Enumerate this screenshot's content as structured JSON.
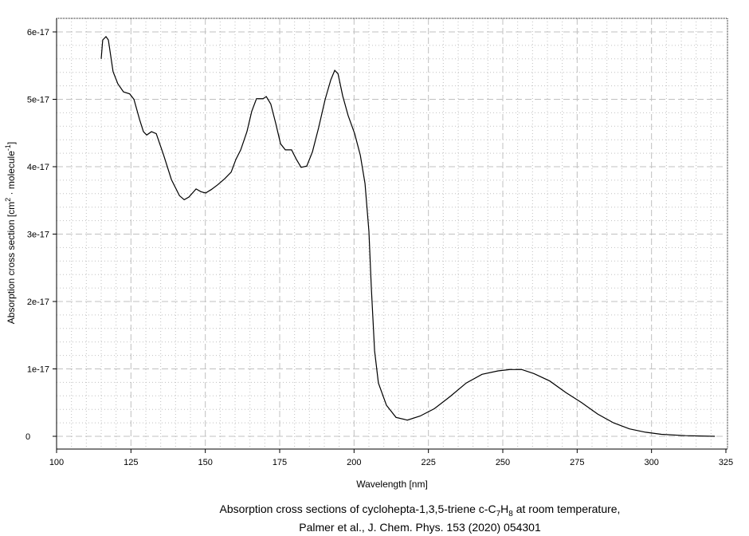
{
  "chart_data": {
    "type": "line",
    "title": "",
    "xlabel": "Wavelength [nm]",
    "ylabel": {
      "main": "Absorption cross section [cm",
      "sup1": "2",
      "mid": " · molecule",
      "sup2": "-1",
      "end": "]"
    },
    "xlim": [
      100,
      325
    ],
    "ylim": [
      -1.9e-18,
      6.2e-17
    ],
    "xticks": [
      100,
      125,
      150,
      175,
      200,
      225,
      250,
      275,
      300,
      325
    ],
    "xtick_labels": [
      "100",
      "125",
      "150",
      "175",
      "200",
      "225",
      "250",
      "275",
      "300",
      "325"
    ],
    "yticks": [
      0,
      1e-17,
      2e-17,
      3e-17,
      4e-17,
      5e-17,
      6e-17
    ],
    "ytick_labels": [
      "0",
      "1e-17",
      "2e-17",
      "3e-17",
      "4e-17",
      "5e-17",
      "6e-17"
    ],
    "grid": {
      "major": "dashed",
      "minor": "dotted",
      "x_minor_step": 5,
      "y_minor_step": 2e-18
    },
    "line_color": "#000000",
    "grid_color": "#c0c0c0",
    "series": [
      {
        "x": [
          115,
          115.5,
          116.6,
          117.4,
          119,
          120.6,
          122.5,
          124.6,
          126,
          127.9,
          129.2,
          130.3,
          131.9,
          133.5,
          136,
          138.6,
          141.3,
          142.9,
          144.5,
          146.9,
          148.5,
          150.1,
          152,
          154.1,
          156.5,
          158.7,
          160.3,
          161.9,
          164,
          165.6,
          167.2,
          169.4,
          170.5,
          172,
          173.7,
          175.3,
          176.9,
          179,
          180.6,
          182.2,
          184.1,
          186,
          188.1,
          190.3,
          192.2,
          193.5,
          194.6,
          196.2,
          198,
          200.2,
          202.1,
          203.7,
          205,
          205.8,
          206.9,
          208.2,
          210.9,
          214.1,
          217.9,
          222.2,
          227,
          232.3,
          237.7,
          243,
          248.4,
          252.4,
          256.4,
          260.5,
          265.8,
          271.2,
          276.5,
          281.9,
          287.2,
          292.6,
          298,
          303.3,
          311.4,
          321.3
        ],
        "y": [
          5.6e-17,
          5.88e-17,
          5.93e-17,
          5.88e-17,
          5.41e-17,
          5.23e-17,
          5.11e-17,
          5.08e-17,
          5e-17,
          4.7e-17,
          4.52e-17,
          4.47e-17,
          4.52e-17,
          4.49e-17,
          4.17e-17,
          3.81e-17,
          3.57e-17,
          3.51e-17,
          3.55e-17,
          3.67e-17,
          3.63e-17,
          3.61e-17,
          3.66e-17,
          3.73e-17,
          3.82e-17,
          3.92e-17,
          4.11e-17,
          4.25e-17,
          4.52e-17,
          4.82e-17,
          5.01e-17,
          5.01e-17,
          5.04e-17,
          4.93e-17,
          4.64e-17,
          4.34e-17,
          4.25e-17,
          4.25e-17,
          4.11e-17,
          3.99e-17,
          4.01e-17,
          4.22e-17,
          4.58e-17,
          5e-17,
          5.29e-17,
          5.43e-17,
          5.38e-17,
          5.05e-17,
          4.76e-17,
          4.49e-17,
          4.17e-17,
          3.75e-17,
          3.04e-17,
          2.21e-17,
          1.27e-17,
          7.9e-18,
          4.6e-18,
          2.8e-18,
          2.4e-18,
          3e-18,
          4.1e-18,
          5.9e-18,
          7.9e-18,
          9.2e-18,
          9.7e-18,
          9.9e-18,
          9.9e-18,
          9.3e-18,
          8.2e-18,
          6.5e-18,
          5e-18,
          3.3e-18,
          2e-18,
          1.1e-18,
          6e-19,
          3e-19,
          1e-19,
          0
        ]
      }
    ]
  },
  "caption": {
    "line1_a": "Absorption cross sections of cyclohepta-1,3,5-triene c-C",
    "sub1": "7",
    "line1_b": "H",
    "sub2": "8",
    "line1_c": " at room temperature,",
    "line2": "Palmer et al., J. Chem. Phys. 153 (2020) 054301"
  }
}
